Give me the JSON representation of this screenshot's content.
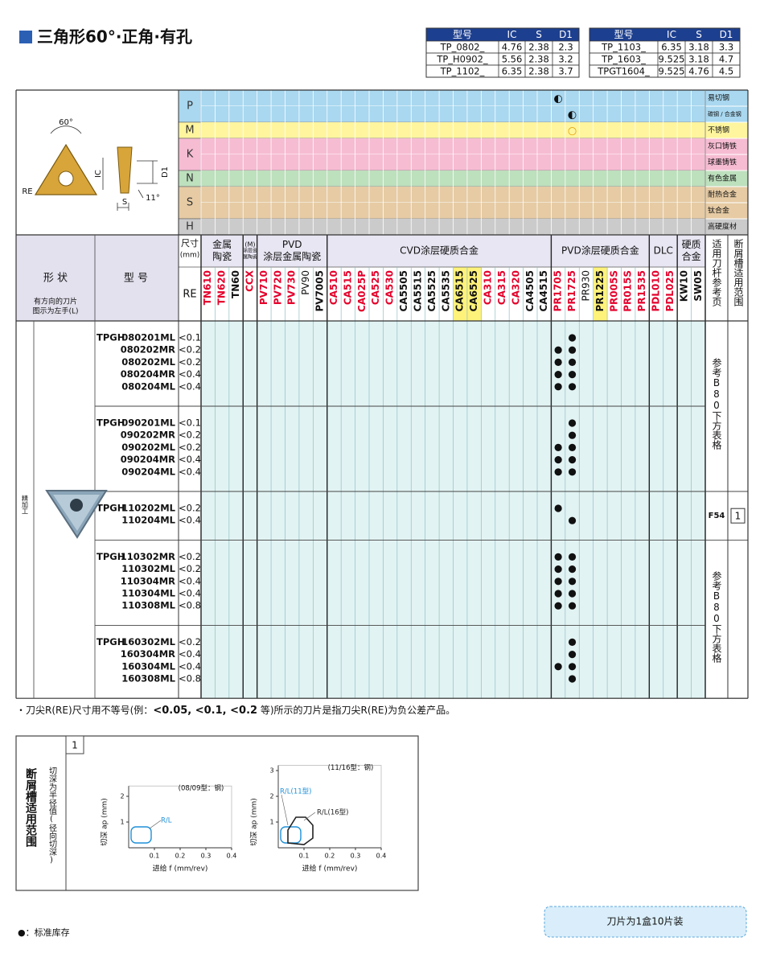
{
  "title": "三角形60°·正角·有孔",
  "spec_tables": [
    {
      "header": [
        "型号",
        "IC",
        "S",
        "D1"
      ],
      "rows": [
        [
          "TP_0802_",
          "4.76",
          "2.38",
          "2.3"
        ],
        [
          "TP_H0902_",
          "5.56",
          "2.38",
          "3.2"
        ],
        [
          "TP_1102_",
          "6.35",
          "2.38",
          "3.7"
        ]
      ]
    },
    {
      "header": [
        "型号",
        "IC",
        "S",
        "D1"
      ],
      "rows": [
        [
          "TP_1103_",
          "6.35",
          "3.18",
          "3.3"
        ],
        [
          "TP_1603_",
          "9.525",
          "3.18",
          "4.7"
        ],
        [
          "TPGT1604_",
          "9.525",
          "4.76",
          "4.5"
        ]
      ]
    }
  ],
  "diagram_labels": [
    "60°",
    "RE",
    "IC",
    "S",
    "D1",
    "11°"
  ],
  "materials": [
    {
      "code": "P",
      "color": "#a9d8f0",
      "sub": [
        {
          "name": "易切钢",
          "marks": {
            "PR1705": "◐"
          }
        },
        {
          "name": "碳钢 / 合金钢",
          "marks": {
            "PR1725": "◐"
          }
        }
      ]
    },
    {
      "code": "M",
      "color": "#fff59e",
      "sub": [
        {
          "name": "不锈钢",
          "marks": {
            "PR1725": "○"
          }
        }
      ]
    },
    {
      "code": "K",
      "color": "#f6bcd2",
      "sub": [
        {
          "name": "灰口铸铁",
          "marks": {}
        },
        {
          "name": "球墨铸铁",
          "marks": {}
        }
      ]
    },
    {
      "code": "N",
      "color": "#bde0bd",
      "sub": [
        {
          "name": "有色金属",
          "marks": {}
        }
      ]
    },
    {
      "code": "S",
      "color": "#e6cba4",
      "sub": [
        {
          "name": "耐热合金",
          "marks": {}
        },
        {
          "name": "钛合金",
          "marks": {}
        }
      ]
    },
    {
      "code": "H",
      "color": "#cbcbcb",
      "sub": [
        {
          "name": "高硬度材",
          "marks": {}
        }
      ]
    }
  ],
  "headers": {
    "shape": "形 状",
    "model": "型 号",
    "shape_note": [
      "有方向的刀片",
      "图示为左手(L)"
    ],
    "size": [
      "尺寸",
      "(mm)"
    ],
    "re": "RE",
    "holder_ref": "适用刀杆参考页",
    "chipbreaker": "断屑槽适用范围",
    "usage": "精加工"
  },
  "grade_groups": [
    {
      "name": [
        "金属",
        "陶瓷"
      ],
      "grades": [
        {
          "name": "TN610",
          "color": "#e4002b"
        },
        {
          "name": "TN620",
          "color": "#e4002b"
        },
        {
          "name": "TN60",
          "color": "#111111"
        }
      ]
    },
    {
      "name": [
        "(M)",
        "涂层金",
        "属陶瓷"
      ],
      "grades": [
        {
          "name": "CCX",
          "color": "#e4002b"
        }
      ]
    },
    {
      "name": [
        "PVD",
        "涂层金属陶瓷"
      ],
      "grades": [
        {
          "name": "PV710",
          "color": "#e4002b"
        },
        {
          "name": "PV720",
          "color": "#e4002b"
        },
        {
          "name": "PV730",
          "color": "#e4002b"
        },
        {
          "name": "PV90",
          "color": "#111111",
          "weight": "normal"
        },
        {
          "name": "PV7005",
          "color": "#111111"
        }
      ]
    },
    {
      "name": [
        "CVD涂层硬质合金"
      ],
      "grades": [
        {
          "name": "CA510",
          "color": "#e4002b"
        },
        {
          "name": "CA515",
          "color": "#e4002b"
        },
        {
          "name": "CA025P",
          "color": "#e4002b"
        },
        {
          "name": "CA525",
          "color": "#e4002b"
        },
        {
          "name": "CA530",
          "color": "#e4002b"
        },
        {
          "name": "CA5505",
          "color": "#111111"
        },
        {
          "name": "CA5515",
          "color": "#111111"
        },
        {
          "name": "CA5525",
          "color": "#111111"
        },
        {
          "name": "CA5535",
          "color": "#111111"
        },
        {
          "name": "CA6515",
          "color": "#111111",
          "highlight": "#fff27a"
        },
        {
          "name": "CA6525",
          "color": "#111111",
          "highlight": "#fff27a"
        },
        {
          "name": "CA310",
          "color": "#e4002b"
        },
        {
          "name": "CA315",
          "color": "#e4002b"
        },
        {
          "name": "CA320",
          "color": "#e4002b"
        },
        {
          "name": "CA4505",
          "color": "#111111"
        },
        {
          "name": "CA4515",
          "color": "#111111"
        }
      ]
    },
    {
      "name": [
        "PVD涂层硬质合金"
      ],
      "grades": [
        {
          "name": "PR1705",
          "color": "#e4002b"
        },
        {
          "name": "PR1725",
          "color": "#e4002b"
        },
        {
          "name": "PR930",
          "color": "#111111",
          "weight": "normal"
        },
        {
          "name": "PR1225",
          "color": "#111111",
          "highlight": "#fff27a"
        },
        {
          "name": "PR005S",
          "color": "#e4002b"
        },
        {
          "name": "PR015S",
          "color": "#e4002b"
        },
        {
          "name": "PR1535",
          "color": "#e4002b"
        }
      ]
    },
    {
      "name": [
        "DLC"
      ],
      "grades": [
        {
          "name": "PDL010",
          "color": "#e4002b"
        },
        {
          "name": "PDL025",
          "color": "#e4002b"
        }
      ]
    },
    {
      "name": [
        "硬质",
        "合金"
      ],
      "grades": [
        {
          "name": "KW10",
          "color": "#111111"
        },
        {
          "name": "SW05",
          "color": "#111111"
        }
      ]
    }
  ],
  "blocks": [
    {
      "ref": "参考B80下方表格",
      "groups": [
        {
          "prefix": "TPGH",
          "rows": [
            {
              "model": "080201ML",
              "re": "<0.1",
              "stock": [
                "PR1725"
              ]
            },
            {
              "model": "080202MR",
              "re": "<0.2",
              "stock": [
                "PR1705",
                "PR1725"
              ]
            },
            {
              "model": "080202ML",
              "re": "<0.2",
              "stock": [
                "PR1705",
                "PR1725"
              ]
            },
            {
              "model": "080204MR",
              "re": "<0.4",
              "stock": [
                "PR1705",
                "PR1725"
              ]
            },
            {
              "model": "080204ML",
              "re": "<0.4",
              "stock": [
                "PR1705",
                "PR1725"
              ]
            }
          ]
        },
        {
          "prefix": "TPGH",
          "rows": [
            {
              "model": "090201ML",
              "re": "<0.1",
              "stock": [
                "PR1725"
              ]
            },
            {
              "model": "090202MR",
              "re": "<0.2",
              "stock": [
                "PR1725"
              ]
            },
            {
              "model": "090202ML",
              "re": "<0.2",
              "stock": [
                "PR1705",
                "PR1725"
              ]
            },
            {
              "model": "090204MR",
              "re": "<0.4",
              "stock": [
                "PR1705",
                "PR1725"
              ]
            },
            {
              "model": "090204ML",
              "re": "<0.4",
              "stock": [
                "PR1705",
                "PR1725"
              ]
            }
          ]
        }
      ]
    },
    {
      "ref": "F54",
      "chipbreaker": "1",
      "groups": [
        {
          "prefix": "TPGH",
          "rows": [
            {
              "model": "110202ML",
              "re": "<0.2",
              "stock": [
                "PR1705"
              ]
            },
            {
              "model": "110204ML",
              "re": "<0.4",
              "stock": [
                "PR1725"
              ]
            }
          ]
        }
      ]
    },
    {
      "ref": "参考B80下方表格",
      "groups": [
        {
          "prefix": "TPGH",
          "rows": [
            {
              "model": "110302MR",
              "re": "<0.2",
              "stock": [
                "PR1705",
                "PR1725"
              ]
            },
            {
              "model": "110302ML",
              "re": "<0.2",
              "stock": [
                "PR1705",
                "PR1725"
              ]
            },
            {
              "model": "110304MR",
              "re": "<0.4",
              "stock": [
                "PR1705",
                "PR1725"
              ]
            },
            {
              "model": "110304ML",
              "re": "<0.4",
              "stock": [
                "PR1705",
                "PR1725"
              ]
            },
            {
              "model": "110308ML",
              "re": "<0.8",
              "stock": [
                "PR1705",
                "PR1725"
              ]
            }
          ]
        },
        {
          "prefix": "TPGH",
          "rows": [
            {
              "model": "160302ML",
              "re": "<0.2",
              "stock": [
                "PR1725"
              ]
            },
            {
              "model": "160304MR",
              "re": "<0.4",
              "stock": [
                "PR1725"
              ]
            },
            {
              "model": "160304ML",
              "re": "<0.4",
              "stock": [
                "PR1705",
                "PR1725"
              ]
            },
            {
              "model": "160308ML",
              "re": "<0.8",
              "stock": [
                "PR1725"
              ]
            }
          ]
        }
      ]
    }
  ],
  "note": {
    "prefix": "・刀尖R(RE)尺寸用不等号(例：",
    "bold": "<0.05, <0.1, <0.2",
    "suffix": " 等)所示的刀片是指刀尖R(RE)为负公差产品。"
  },
  "chipbreaker_panel": {
    "badge": "1",
    "title": "断屑槽适用范围",
    "note": "切深为半径值(径向切深)",
    "charts": [
      {
        "caption": "(08/09型：钢)",
        "ylabel": "切深 ap (mm)",
        "xlabel": "进给 f (mm/rev)",
        "xlim": [
          0,
          0.4
        ],
        "ylim": [
          0,
          2.4
        ],
        "xticks": [
          0.1,
          0.2,
          0.3,
          0.4
        ],
        "yticks": [
          1,
          2
        ],
        "regions": [
          {
            "label": "R/L",
            "color": "#1e90d8"
          }
        ]
      },
      {
        "caption": "(11/16型：钢)",
        "ylabel": "切深 ap (mm)",
        "xlabel": "进给 f (mm/rev)",
        "xlim": [
          0,
          0.4
        ],
        "ylim": [
          0,
          3.2
        ],
        "xticks": [
          0.1,
          0.2,
          0.3,
          0.4
        ],
        "yticks": [
          1,
          2,
          3
        ],
        "regions": [
          {
            "label": "R/L(11型)",
            "color": "#1e90d8"
          },
          {
            "label": "R/L(16型)",
            "color": "#222222"
          }
        ]
      }
    ]
  },
  "legend": "●：标准库存",
  "box_note": "刀片为1盒10片装"
}
